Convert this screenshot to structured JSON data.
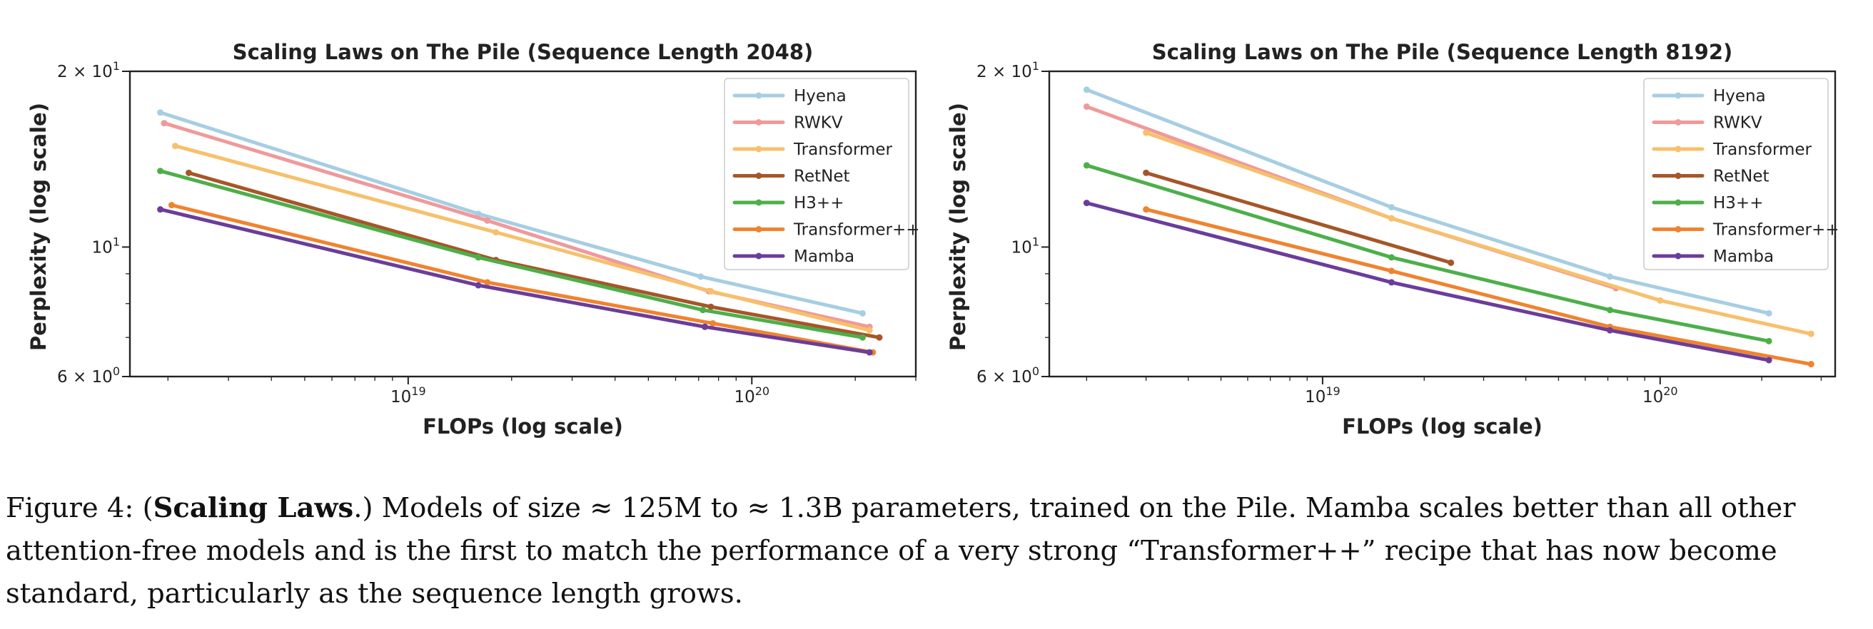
{
  "chart_data": [
    {
      "type": "line",
      "title": "Scaling Laws on The Pile (Sequence Length 2048)",
      "xlabel": "FLOPs (log scale)",
      "ylabel": "Perplexity (log scale)",
      "xscale": "log",
      "yscale": "log",
      "xlim": [
        1.55e+18,
        3e+20
      ],
      "ylim": [
        6,
        20
      ],
      "xticks": [
        {
          "value": 1e+19,
          "label": "10^19"
        },
        {
          "value": 1e+20,
          "label": "10^20"
        }
      ],
      "yticks": [
        {
          "value": 20,
          "label": "2 × 10^1"
        },
        {
          "value": 10,
          "label": "10^1"
        },
        {
          "value": 6,
          "label": "6 × 10^0"
        }
      ],
      "grid": false,
      "legend": "top-right",
      "series": [
        {
          "name": "Hyena",
          "color": "#a6cee3",
          "x": [
            1.9e+18,
            1.6e+19,
            7.1e+19,
            2.1e+20
          ],
          "y": [
            17.0,
            11.4,
            8.9,
            7.7
          ]
        },
        {
          "name": "RWKV",
          "color": "#f0999a",
          "x": [
            1.95e+18,
            1.7e+19,
            7.5e+19,
            2.2e+20
          ],
          "y": [
            16.3,
            11.1,
            8.4,
            7.3
          ]
        },
        {
          "name": "Transformer",
          "color": "#f7c06b",
          "x": [
            2.1e+18,
            1.8e+19,
            7.6e+19,
            2.2e+20
          ],
          "y": [
            14.9,
            10.6,
            8.4,
            7.2
          ]
        },
        {
          "name": "RetNet",
          "color": "#a65628",
          "x": [
            2.3e+18,
            1.8e+19,
            7.6e+19,
            2.35e+20
          ],
          "y": [
            13.4,
            9.5,
            7.9,
            7.0
          ]
        },
        {
          "name": "H3++",
          "color": "#4daf4a",
          "x": [
            1.9e+18,
            1.6e+19,
            7.2e+19,
            2.1e+20
          ],
          "y": [
            13.5,
            9.6,
            7.8,
            7.0
          ]
        },
        {
          "name": "Transformer++",
          "color": "#f0832f",
          "x": [
            2.05e+18,
            1.7e+19,
            7.7e+19,
            2.25e+20
          ],
          "y": [
            11.8,
            8.7,
            7.4,
            6.6
          ]
        },
        {
          "name": "Mamba",
          "color": "#6a3d9a",
          "x": [
            1.9e+18,
            1.6e+19,
            7.3e+19,
            2.2e+20
          ],
          "y": [
            11.6,
            8.6,
            7.3,
            6.6
          ]
        }
      ]
    },
    {
      "type": "line",
      "title": "Scaling Laws on The Pile (Sequence Length 8192)",
      "xlabel": "FLOPs (log scale)",
      "ylabel": "Perplexity (log scale)",
      "xscale": "log",
      "yscale": "log",
      "xlim": [
        1.55e+18,
        3.3e+20
      ],
      "ylim": [
        6,
        20
      ],
      "xticks": [
        {
          "value": 1e+19,
          "label": "10^19"
        },
        {
          "value": 1e+20,
          "label": "10^20"
        }
      ],
      "yticks": [
        {
          "value": 20,
          "label": "2 × 10^1"
        },
        {
          "value": 10,
          "label": "10^1"
        },
        {
          "value": 6,
          "label": "6 × 10^0"
        }
      ],
      "grid": false,
      "legend": "top-right",
      "series": [
        {
          "name": "Hyena",
          "color": "#a6cee3",
          "x": [
            2e+18,
            1.6e+19,
            7.1e+19,
            2.1e+20
          ],
          "y": [
            18.6,
            11.7,
            8.9,
            7.7
          ]
        },
        {
          "name": "RWKV",
          "color": "#f0999a",
          "x": [
            2e+18,
            1.6e+19,
            7.4e+19
          ],
          "y": [
            17.4,
            11.2,
            8.5
          ]
        },
        {
          "name": "Transformer",
          "color": "#f7c06b",
          "x": [
            3e+18,
            1.6e+19,
            1e+20,
            2.8e+20
          ],
          "y": [
            15.7,
            11.2,
            8.1,
            7.1
          ]
        },
        {
          "name": "RetNet",
          "color": "#a65628",
          "x": [
            3e+18,
            2.4e+19
          ],
          "y": [
            13.4,
            9.4
          ]
        },
        {
          "name": "H3++",
          "color": "#4daf4a",
          "x": [
            2e+18,
            1.6e+19,
            7.1e+19,
            2.1e+20
          ],
          "y": [
            13.8,
            9.6,
            7.8,
            6.9
          ]
        },
        {
          "name": "Transformer++",
          "color": "#f0832f",
          "x": [
            3e+18,
            1.6e+19,
            7.1e+19,
            2.8e+20
          ],
          "y": [
            11.6,
            9.1,
            7.3,
            6.3
          ]
        },
        {
          "name": "Mamba",
          "color": "#6a3d9a",
          "x": [
            2e+18,
            1.6e+19,
            7.1e+19,
            2.1e+20
          ],
          "y": [
            11.9,
            8.7,
            7.2,
            6.4
          ]
        }
      ]
    }
  ],
  "caption": {
    "label": "Figure 4: (",
    "bold": "Scaling Laws",
    "text": ".) Models of size ≈ 125M to ≈ 1.3B parameters, trained on the Pile. Mamba scales better than all other attention-free models and is the first to match the performance of a very strong “Transformer++” recipe that has now become standard, particularly as the sequence length grows."
  }
}
